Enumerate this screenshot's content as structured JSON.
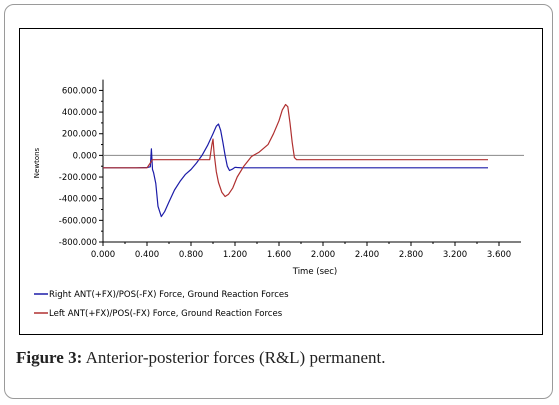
{
  "caption": {
    "label": "Figure 3:",
    "text": " Anterior-posterior forces (R&L) permanent."
  },
  "chart_data": {
    "type": "line",
    "title": "",
    "xlabel": "Time (sec)",
    "ylabel": "Newtons",
    "xlim": [
      0,
      3.8
    ],
    "ylim": [
      -800,
      700
    ],
    "x_ticks": [
      "0.000",
      "0.400",
      "0.800",
      "1.200",
      "1.600",
      "2.000",
      "2.400",
      "2.800",
      "3.200",
      "3.600"
    ],
    "x_tick_values": [
      0,
      0.4,
      0.8,
      1.2,
      1.6,
      2.0,
      2.4,
      2.8,
      3.2,
      3.6
    ],
    "y_ticks": [
      "600.000",
      "400.000",
      "200.000",
      "0.000",
      "-200.000",
      "-400.000",
      "-600.000",
      "-800.000"
    ],
    "y_tick_values": [
      600,
      400,
      200,
      0,
      -200,
      -400,
      -600,
      -800
    ],
    "zero_line": true,
    "grid": false,
    "legend_position": "bottom-left",
    "series": [
      {
        "name": "Right ANT(+FX)/POS(-FX) Force, Ground Reaction Forces",
        "color": "#1c1ca8",
        "x": [
          0.0,
          0.1,
          0.2,
          0.3,
          0.4,
          0.43,
          0.44,
          0.45,
          0.46,
          0.48,
          0.5,
          0.53,
          0.56,
          0.6,
          0.65,
          0.7,
          0.75,
          0.8,
          0.85,
          0.9,
          0.95,
          1.0,
          1.03,
          1.05,
          1.07,
          1.09,
          1.11,
          1.13,
          1.15,
          1.18,
          1.2,
          1.22,
          1.26,
          1.3,
          1.5,
          2.0,
          2.5,
          3.0,
          3.5
        ],
        "y": [
          -115,
          -115,
          -115,
          -115,
          -112,
          -105,
          60,
          -130,
          -160,
          -260,
          -470,
          -565,
          -520,
          -430,
          -320,
          -240,
          -175,
          -130,
          -70,
          0,
          90,
          200,
          270,
          290,
          230,
          120,
          0,
          -100,
          -140,
          -125,
          -110,
          -112,
          -115,
          -115,
          -115,
          -115,
          -115,
          -115,
          -115
        ]
      },
      {
        "name": "Left ANT(+FX)/POS(-FX) Force, Ground Reaction Forces",
        "color": "#b03030",
        "x": [
          0.0,
          0.4,
          0.45,
          0.5,
          0.6,
          0.8,
          0.9,
          0.97,
          0.99,
          1.0,
          1.01,
          1.03,
          1.05,
          1.08,
          1.11,
          1.14,
          1.18,
          1.22,
          1.28,
          1.35,
          1.42,
          1.5,
          1.55,
          1.6,
          1.63,
          1.66,
          1.68,
          1.7,
          1.72,
          1.74,
          1.76,
          1.8,
          2.0,
          2.5,
          3.0,
          3.5
        ],
        "y": [
          -115,
          -115,
          -40,
          -40,
          -40,
          -40,
          -40,
          -40,
          100,
          150,
          20,
          -150,
          -250,
          -340,
          -380,
          -360,
          -300,
          -200,
          -100,
          -10,
          30,
          100,
          200,
          320,
          420,
          470,
          450,
          300,
          120,
          -20,
          -40,
          -40,
          -40,
          -40,
          -40,
          -40
        ]
      }
    ]
  }
}
